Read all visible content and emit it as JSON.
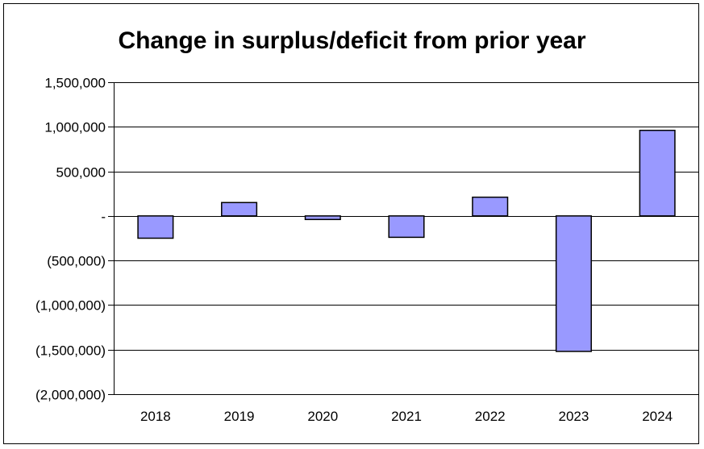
{
  "chart_data": {
    "type": "bar",
    "title": "Change in surplus/deficit from prior year",
    "xlabel": "",
    "ylabel": "",
    "categories": [
      "2018",
      "2019",
      "2020",
      "2021",
      "2022",
      "2023",
      "2024"
    ],
    "values": [
      -250000,
      150000,
      -40000,
      -240000,
      210000,
      -1520000,
      960000
    ],
    "ylim": [
      -2000000,
      1500000
    ],
    "yticks": [
      1500000,
      1000000,
      500000,
      0,
      -500000,
      -1000000,
      -1500000,
      -2000000
    ],
    "ytick_labels": [
      "1,500,000",
      "1,000,000",
      "500,000",
      "-",
      "(500,000)",
      "(1,000,000)",
      "(1,500,000)",
      "(2,000,000)"
    ],
    "grid": true,
    "legend": "none",
    "bar_color": "#9999ff",
    "bar_border_color": "#000000"
  }
}
